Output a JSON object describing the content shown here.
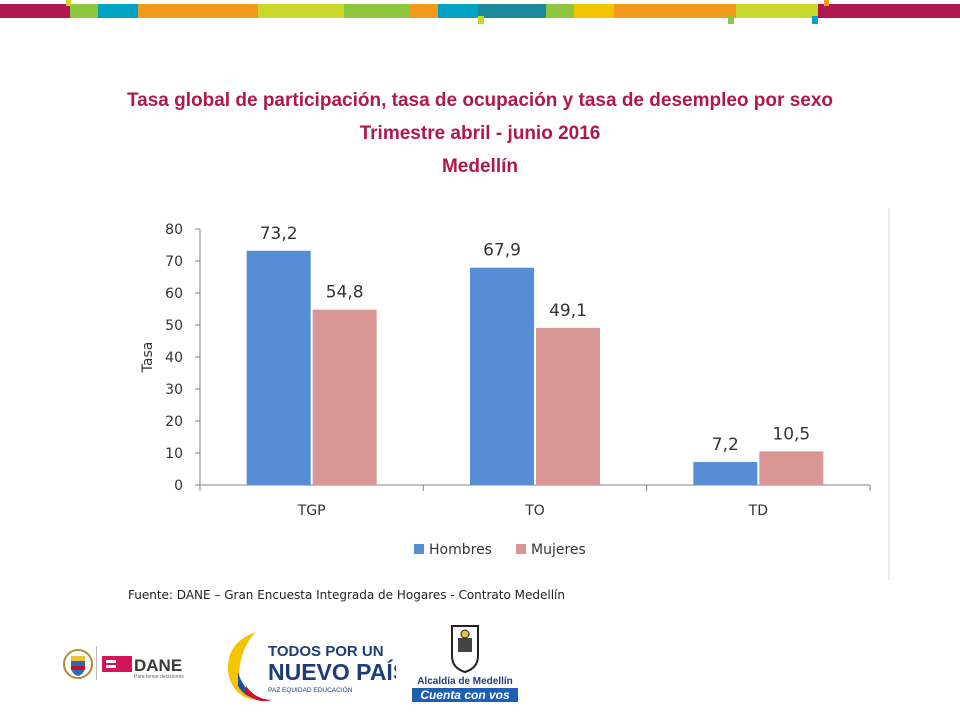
{
  "title": {
    "line1": "Tasa global de participación, tasa de ocupación y tasa de desempleo por sexo",
    "line2": "Trimestre abril - junio 2016",
    "line3": "Medellín"
  },
  "colors": {
    "title": "#b1174f",
    "hombres": "#558ed5",
    "mujeres": "#d99694"
  },
  "chart_data": {
    "type": "bar",
    "categories": [
      "TGP",
      "TO",
      "TD"
    ],
    "series": [
      {
        "name": "Hombres",
        "values": [
          73.2,
          67.9,
          7.2
        ],
        "labels": [
          "73,2",
          "67,9",
          "7,2"
        ]
      },
      {
        "name": "Mujeres",
        "values": [
          54.8,
          49.1,
          10.5
        ],
        "labels": [
          "54,8",
          "49,1",
          "10,5"
        ]
      }
    ],
    "ylabel": "Tasa",
    "xlabel": "",
    "ylim": [
      0,
      80
    ],
    "yticks": [
      0,
      10,
      20,
      30,
      40,
      50,
      60,
      70,
      80
    ],
    "grid": false,
    "legend": "bottom"
  },
  "source": "Fuente: DANE – Gran Encuesta Integrada de Hogares - Contrato Medellín",
  "logos": {
    "dane": "DANE",
    "dane_tagline": "Para tomar decisiones",
    "todos_line1": "TODOS POR UN",
    "todos_line2": "NUEVO PAÍS",
    "todos_line3": "PAZ  EQUIDAD  EDUCACIÓN",
    "alcaldia_line1": "Alcaldía de Medellín",
    "alcaldia_line2": "Cuenta con vos"
  }
}
